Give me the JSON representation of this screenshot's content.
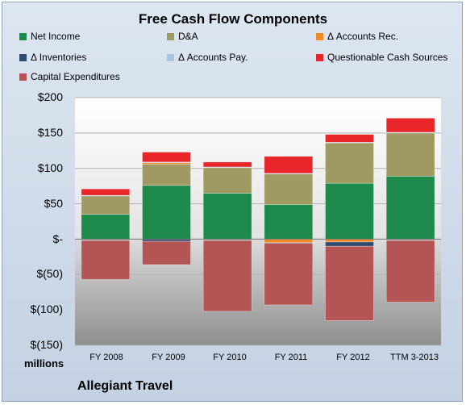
{
  "chart_data": {
    "type": "bar",
    "stacked": true,
    "title": "Free Cash Flow Components",
    "categories": [
      "FY 2008",
      "FY 2009",
      "FY 2010",
      "FY 2011",
      "FY 2012",
      "TTM 3-2013"
    ],
    "yticks": [
      "$200",
      "$150",
      "$100",
      "$50",
      "$-",
      "$(50)",
      "$(100)",
      "$(150)"
    ],
    "ylim": [
      -150,
      200
    ],
    "units_label": "millions",
    "grid": true,
    "legend_position": "top",
    "series": [
      {
        "name": "Net Income",
        "color": "#1e8a4c",
        "values": [
          35,
          76,
          65,
          49,
          79,
          89
        ]
      },
      {
        "name": "D&A",
        "color": "#a09a62",
        "values": [
          26,
          30,
          36,
          43,
          57,
          61
        ]
      },
      {
        "name": "Δ Accounts Rec.",
        "color": "#f08a24",
        "values": [
          -1,
          2,
          -1,
          -5,
          -4,
          -1
        ]
      },
      {
        "name": "Δ Inventories",
        "color": "#2f4a70",
        "values": [
          -1,
          -3,
          -1,
          -1,
          -6,
          -1
        ]
      },
      {
        "name": "Δ Accounts Pay.",
        "color": "#a8c4e0",
        "values": [
          1,
          1,
          1,
          1,
          1,
          1
        ]
      },
      {
        "name": "Questionable Cash Sources",
        "color": "#e8262a",
        "values": [
          9,
          14,
          7,
          24,
          11,
          20
        ]
      },
      {
        "name": "Capital Expenditures",
        "color": "#b35555",
        "values": [
          -55,
          -33,
          -100,
          -87,
          -105,
          -87
        ]
      }
    ]
  },
  "footer": {
    "company": "Allegiant Travel"
  }
}
